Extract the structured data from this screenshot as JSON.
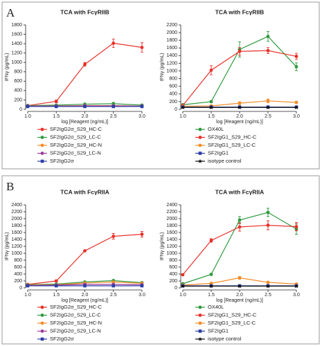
{
  "panels": [
    "A",
    "B"
  ],
  "chart_data": [
    {
      "type": "line",
      "title": "TCA with FcγRIIB",
      "x_label": "log [Reagent (ng/mL)]",
      "y_label": "IFNγ (pg/mL)",
      "x": [
        1,
        1.5,
        2,
        2.5,
        3
      ],
      "xlim": [
        1,
        3
      ],
      "xticks": [
        {
          "value": 1,
          "label": "1.0"
        },
        1.5,
        {
          "value": 2,
          "label": "2.0"
        },
        2.5,
        {
          "value": 3,
          "label": "3.0"
        }
      ],
      "ylim": [
        0,
        1800
      ],
      "yticks": [
        0,
        200,
        400,
        600,
        800,
        1000,
        1200,
        1400,
        1600,
        1800
      ],
      "series": [
        {
          "name": "SF2IgG2σ_S29_HC-C",
          "color": "#e8312a",
          "marker": "circle",
          "values": [
            80,
            170,
            960,
            1410,
            1320
          ],
          "errors": [
            10,
            30,
            40,
            90,
            100
          ]
        },
        {
          "name": "SF2IgG2σ_S29_LC-C",
          "color": "#2e9a3e",
          "marker": "circle",
          "values": [
            80,
            90,
            110,
            120,
            90
          ],
          "errors": [
            10,
            15,
            20,
            30,
            15
          ]
        },
        {
          "name": "SF2IgG2σ_S29_HC-N",
          "color": "#f28c28",
          "marker": "circle",
          "values": [
            70,
            75,
            80,
            80,
            70
          ],
          "errors": [
            10,
            10,
            10,
            10,
            10
          ]
        },
        {
          "name": "SF2IgG2σ_S29_LC-N",
          "color": "#9b3c9b",
          "marker": "circle",
          "values": [
            70,
            70,
            75,
            75,
            70
          ],
          "errors": [
            10,
            10,
            10,
            10,
            10
          ]
        },
        {
          "name": "SF2IgG2σ",
          "color": "#2b3ea8",
          "marker": "square",
          "values": [
            60,
            60,
            60,
            60,
            60
          ],
          "errors": [
            5,
            5,
            5,
            5,
            5
          ]
        }
      ]
    },
    {
      "type": "line",
      "title": "TCA with FcγRIIB",
      "x_label": "log [Reagent (ng/mL)]",
      "y_label": "IFNγ (pg/mL)",
      "x": [
        1,
        1.5,
        2,
        2.5,
        3
      ],
      "xlim": [
        1,
        3
      ],
      "xticks": [
        {
          "value": 1,
          "label": "1.0"
        },
        1.5,
        {
          "value": 2,
          "label": "2.0"
        },
        2.5,
        {
          "value": 3,
          "label": "3.0"
        }
      ],
      "ylim": [
        0,
        2200
      ],
      "yticks": [
        0,
        200,
        400,
        600,
        800,
        1000,
        1200,
        1400,
        1600,
        1800,
        2000,
        2200
      ],
      "series": [
        {
          "name": "OX40L",
          "color": "#2e9a3e",
          "marker": "circle",
          "values": [
            120,
            200,
            1560,
            1900,
            1110
          ],
          "errors": [
            20,
            30,
            200,
            130,
            100
          ]
        },
        {
          "name": "SF2IgG1_S29_HC-C",
          "color": "#e8312a",
          "marker": "circle",
          "values": [
            100,
            1020,
            1510,
            1530,
            1380
          ],
          "errors": [
            20,
            120,
            100,
            80,
            80
          ]
        },
        {
          "name": "SF2IgG1_S29_LC-C",
          "color": "#f28c28",
          "marker": "circle",
          "values": [
            80,
            90,
            160,
            220,
            180
          ],
          "errors": [
            10,
            15,
            40,
            50,
            30
          ]
        },
        {
          "name": "SF2IgG1",
          "color": "#2b3ea8",
          "marker": "square",
          "values": [
            60,
            60,
            60,
            60,
            60
          ],
          "errors": [
            5,
            5,
            5,
            5,
            5
          ]
        },
        {
          "name": "isotype control",
          "color": "#111111",
          "marker": "star",
          "values": [
            50,
            50,
            50,
            50,
            50
          ],
          "errors": [
            5,
            5,
            5,
            5,
            5
          ]
        }
      ]
    },
    {
      "type": "line",
      "title": "TCA with FcγRIIA",
      "x_label": "log [Reagent (ng/mL)]",
      "y_label": "IFNγ (pg/mL)",
      "x": [
        1,
        1.5,
        2,
        2.5,
        3
      ],
      "xlim": [
        1,
        3
      ],
      "xticks": [
        {
          "value": 1,
          "label": "1.0"
        },
        1.5,
        {
          "value": 2,
          "label": "2.0"
        },
        2.5,
        {
          "value": 3,
          "label": "3.0"
        }
      ],
      "ylim": [
        0,
        2400
      ],
      "yticks": [
        0,
        200,
        400,
        600,
        800,
        1000,
        1200,
        1400,
        1600,
        1800,
        2000,
        2200,
        2400
      ],
      "series": [
        {
          "name": "SF2IgG2σ_S29_HC-C",
          "color": "#e8312a",
          "marker": "circle",
          "values": [
            100,
            200,
            1070,
            1490,
            1550
          ],
          "errors": [
            10,
            30,
            30,
            80,
            80
          ]
        },
        {
          "name": "SF2IgG2σ_S29_LC-C",
          "color": "#2e9a3e",
          "marker": "circle",
          "values": [
            90,
            110,
            170,
            210,
            150
          ],
          "errors": [
            10,
            15,
            20,
            30,
            20
          ]
        },
        {
          "name": "SF2IgG2σ_S29_HC-N",
          "color": "#f28c28",
          "marker": "circle",
          "values": [
            80,
            90,
            140,
            170,
            130
          ],
          "errors": [
            10,
            10,
            15,
            20,
            15
          ]
        },
        {
          "name": "SF2IgG2σ_S29_LC-N",
          "color": "#9b3c9b",
          "marker": "circle",
          "values": [
            70,
            80,
            100,
            100,
            90
          ],
          "errors": [
            10,
            10,
            10,
            10,
            10
          ]
        },
        {
          "name": "SF2IgG2σ",
          "color": "#2b3ea8",
          "marker": "square",
          "values": [
            60,
            60,
            60,
            60,
            60
          ],
          "errors": [
            5,
            5,
            5,
            5,
            5
          ]
        }
      ]
    },
    {
      "type": "line",
      "title": "TCA with FcγRIIA",
      "x_label": "log [Reagent (ng/mL)]",
      "y_label": "IFNγ (pg/mL)",
      "x": [
        1,
        1.5,
        2,
        2.5,
        3
      ],
      "xlim": [
        1,
        3
      ],
      "xticks": [
        {
          "value": 1,
          "label": "1.0"
        },
        1.5,
        {
          "value": 2,
          "label": "2.0"
        },
        2.5,
        {
          "value": 3,
          "label": "3.0"
        }
      ],
      "ylim": [
        0,
        2400
      ],
      "yticks": [
        0,
        200,
        400,
        600,
        800,
        1000,
        1200,
        1400,
        1600,
        1800,
        2000,
        2200,
        2400
      ],
      "series": [
        {
          "name": "OX40L",
          "color": "#2e9a3e",
          "marker": "circle",
          "values": [
            120,
            390,
            1960,
            2180,
            1700
          ],
          "errors": [
            20,
            30,
            100,
            120,
            150
          ]
        },
        {
          "name": "SF2IgG1_S29_HC-C",
          "color": "#e8312a",
          "marker": "circle",
          "values": [
            380,
            1370,
            1760,
            1810,
            1770
          ],
          "errors": [
            30,
            50,
            120,
            130,
            120
          ]
        },
        {
          "name": "SF2IgG1_S29_LC-C",
          "color": "#f28c28",
          "marker": "circle",
          "values": [
            80,
            130,
            290,
            160,
            110
          ],
          "errors": [
            10,
            20,
            40,
            20,
            15
          ]
        },
        {
          "name": "SF2IgG1",
          "color": "#2b3ea8",
          "marker": "square",
          "values": [
            60,
            60,
            60,
            60,
            60
          ],
          "errors": [
            5,
            5,
            5,
            5,
            5
          ]
        },
        {
          "name": "isotype control",
          "color": "#111111",
          "marker": "star",
          "values": [
            50,
            50,
            50,
            50,
            50
          ],
          "errors": [
            5,
            5,
            5,
            5,
            5
          ]
        }
      ]
    }
  ]
}
